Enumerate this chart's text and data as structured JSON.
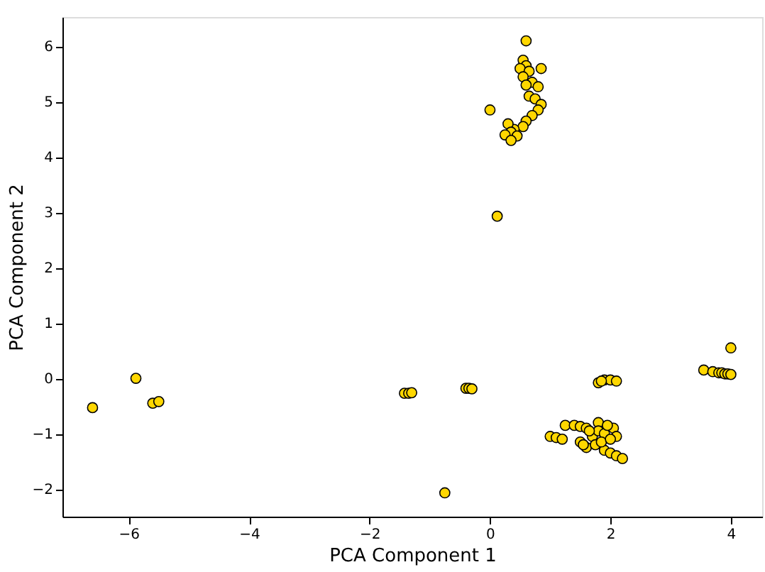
{
  "chart_data": {
    "type": "scatter",
    "xlabel": "PCA Component 1",
    "ylabel": "PCA Component 2",
    "marker": "circle",
    "grid": false,
    "xlim": [
      -7.1,
      4.52
    ],
    "ylim": [
      -2.5,
      6.53
    ],
    "xticks": [
      -6,
      -4,
      -2,
      0,
      2,
      4
    ],
    "yticks": [
      -2,
      -1,
      0,
      1,
      2,
      3,
      4,
      5,
      6
    ],
    "series": [
      {
        "color": "#ffd700",
        "x": [
          0.6,
          0.55,
          0.6,
          0.5,
          0.85,
          0.65,
          0.55,
          0.7,
          0.8,
          0.6,
          0.65,
          0.75,
          0.85,
          0.8,
          0.7,
          0.6,
          0.55,
          0.4,
          0.3,
          0.35,
          0.25,
          0.45,
          0.35,
          0.0,
          0.12,
          3.55,
          3.7,
          3.8,
          3.85,
          3.9,
          3.95,
          4.0,
          4.0,
          -6.6,
          -5.88,
          -5.6,
          -5.5,
          -1.42,
          -1.35,
          -1.3,
          -0.4,
          -0.35,
          -0.3,
          -0.75,
          1.8,
          1.9,
          2.0,
          2.1,
          1.85,
          1.0,
          1.1,
          1.2,
          1.25,
          1.4,
          1.5,
          1.6,
          1.5,
          1.6,
          1.55,
          1.7,
          1.8,
          1.8,
          1.9,
          1.9,
          2.0,
          2.1,
          2.2,
          2.05,
          2.1,
          1.75,
          1.85,
          1.65,
          2.0,
          1.95
        ],
        "values": [
          6.1,
          5.75,
          5.65,
          5.6,
          5.6,
          5.55,
          5.45,
          5.35,
          5.27,
          5.3,
          5.1,
          5.05,
          4.95,
          4.85,
          4.75,
          4.65,
          4.55,
          4.5,
          4.6,
          4.45,
          4.4,
          4.38,
          4.3,
          4.85,
          2.93,
          0.15,
          0.12,
          0.1,
          0.1,
          0.08,
          0.08,
          0.07,
          0.55,
          -0.53,
          0.0,
          -0.45,
          -0.42,
          -0.27,
          -0.27,
          -0.26,
          -0.18,
          -0.18,
          -0.19,
          -2.07,
          -0.08,
          -0.03,
          -0.03,
          -0.05,
          -0.05,
          -1.05,
          -1.07,
          -1.1,
          -0.85,
          -0.85,
          -0.87,
          -0.9,
          -1.15,
          -1.25,
          -1.2,
          -1.05,
          -0.8,
          -0.95,
          -1.0,
          -1.3,
          -1.35,
          -1.4,
          -1.45,
          -0.9,
          -1.05,
          -1.2,
          -1.15,
          -0.95,
          -1.1,
          -0.85
        ]
      }
    ]
  }
}
